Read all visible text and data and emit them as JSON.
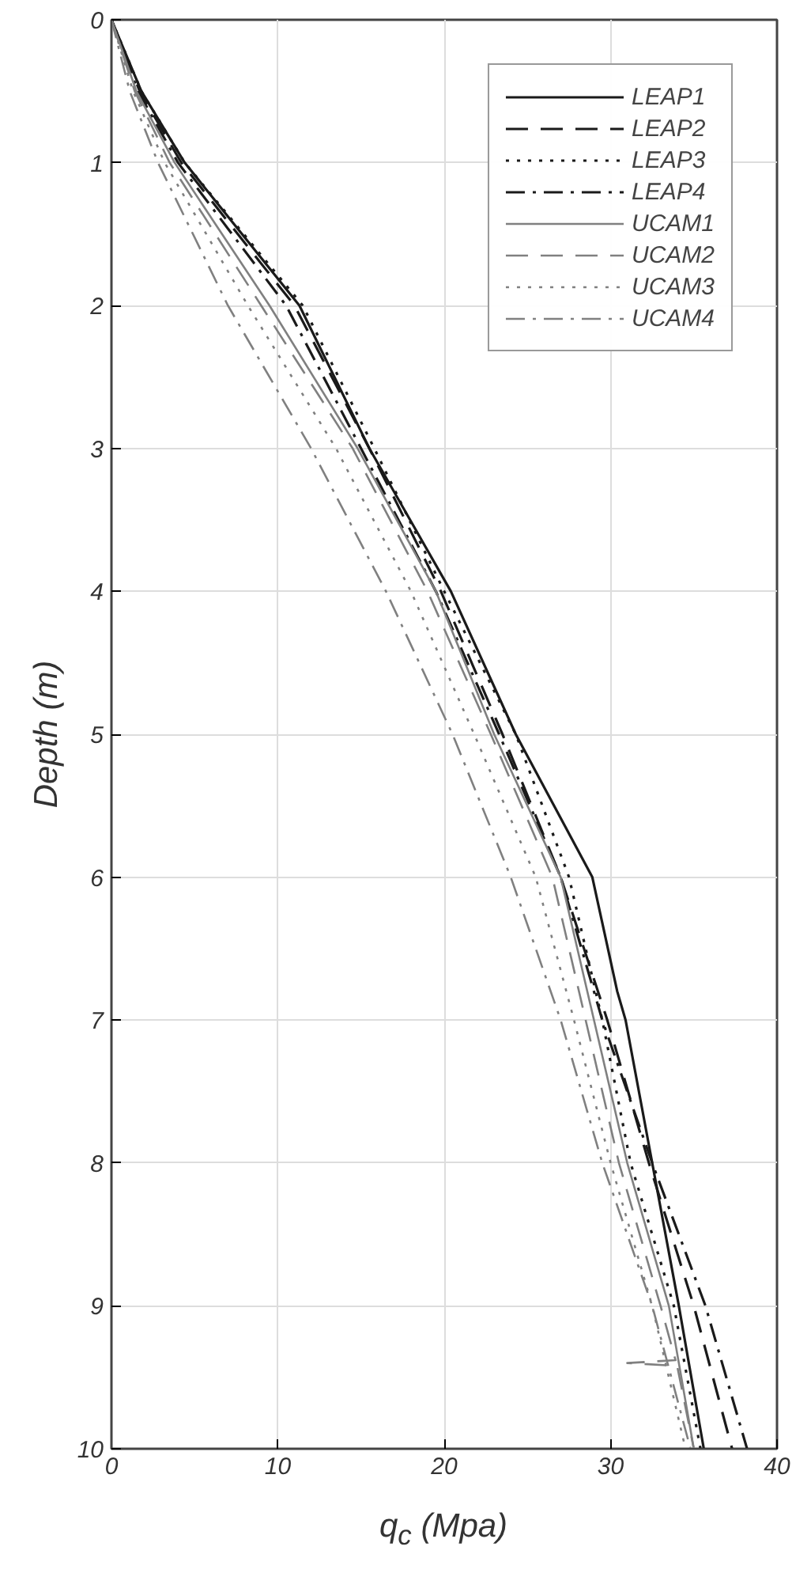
{
  "chart_data": {
    "type": "line",
    "xlabel": "q$_{c}$ (Mpa)",
    "ylabel": "Depth (m)",
    "xlim": [
      0,
      40
    ],
    "ylim": [
      10,
      0
    ],
    "xticks": [
      0,
      10,
      20,
      30,
      40
    ],
    "yticks": [
      0,
      1,
      2,
      3,
      4,
      5,
      6,
      7,
      8,
      9,
      10
    ],
    "grid": true,
    "legend": "top right",
    "series": [
      {
        "name": "LEAP1",
        "color": "#1a1a1a",
        "line_style": "solid",
        "x": [
          0,
          1.8,
          4.4,
          11.3,
          15.5,
          20.4,
          24.3,
          28.9,
          30.4,
          30.9,
          32.5,
          34.1,
          35.6
        ],
        "values": [
          0,
          0.5,
          1,
          2,
          3,
          4,
          5,
          6,
          6.8,
          7,
          8,
          9,
          10
        ]
      },
      {
        "name": "LEAP2",
        "color": "#1a1a1a",
        "line_style": "dashed",
        "x": [
          0,
          1.7,
          4.2,
          11,
          15.5,
          19.8,
          23.5,
          27,
          29.8,
          32.3,
          35,
          37.3
        ],
        "values": [
          0,
          0.5,
          1,
          2,
          3,
          4,
          5,
          6,
          7,
          8,
          9,
          10
        ]
      },
      {
        "name": "LEAP3",
        "color": "#1a1a1a",
        "line_style": "dotted",
        "x": [
          0,
          1.8,
          4.4,
          11.5,
          15.8,
          20,
          24.3,
          27.5,
          29.5,
          31.2,
          33.8,
          35.4
        ],
        "values": [
          0,
          0.5,
          1,
          2,
          3,
          4,
          5,
          6,
          7,
          8,
          9,
          10
        ]
      },
      {
        "name": "LEAP4",
        "color": "#1a1a1a",
        "line_style": "dashdot",
        "x": [
          0,
          1.6,
          4,
          10.5,
          15,
          19.5,
          23.3,
          27,
          29.5,
          32.5,
          35.7,
          38.2
        ],
        "values": [
          0,
          0.5,
          1,
          2,
          3,
          4,
          5,
          6,
          7,
          8,
          9,
          10
        ]
      },
      {
        "name": "UCAM1",
        "color": "#808080",
        "line_style": "solid",
        "x": [
          0,
          1.5,
          3.8,
          9.5,
          14.8,
          19.5,
          23,
          27,
          29,
          31,
          33.5,
          35
        ],
        "values": [
          0,
          0.5,
          1,
          2,
          3,
          4,
          5,
          6,
          7,
          8,
          9,
          10
        ]
      },
      {
        "name": "UCAM2",
        "color": "#808080",
        "line_style": "dashed",
        "x": [
          0,
          1.4,
          3.5,
          9,
          14.5,
          19,
          22.8,
          26.5,
          28.5,
          30.5,
          33,
          33.9,
          31,
          34,
          35
        ],
        "values": [
          0,
          0.5,
          1,
          2,
          3,
          4,
          5,
          6,
          7,
          8,
          9,
          9.38,
          9.4,
          9.42,
          10
        ]
      },
      {
        "name": "UCAM3",
        "color": "#808080",
        "line_style": "dotted",
        "x": [
          0,
          1.3,
          3.2,
          8.2,
          13.5,
          18,
          21.8,
          25.5,
          27.8,
          30,
          32.5,
          34.5
        ],
        "values": [
          0,
          0.5,
          1,
          2,
          3,
          4,
          5,
          6,
          7,
          8,
          9,
          10
        ]
      },
      {
        "name": "UCAM4",
        "color": "#808080",
        "line_style": "dashdot",
        "x": [
          0,
          1.1,
          2.8,
          7,
          12,
          16.5,
          20.5,
          24,
          27,
          29.5,
          32.5,
          34.8
        ],
        "values": [
          0,
          0.5,
          1,
          2,
          3,
          4,
          5,
          6,
          7,
          8,
          9,
          10
        ]
      }
    ]
  }
}
